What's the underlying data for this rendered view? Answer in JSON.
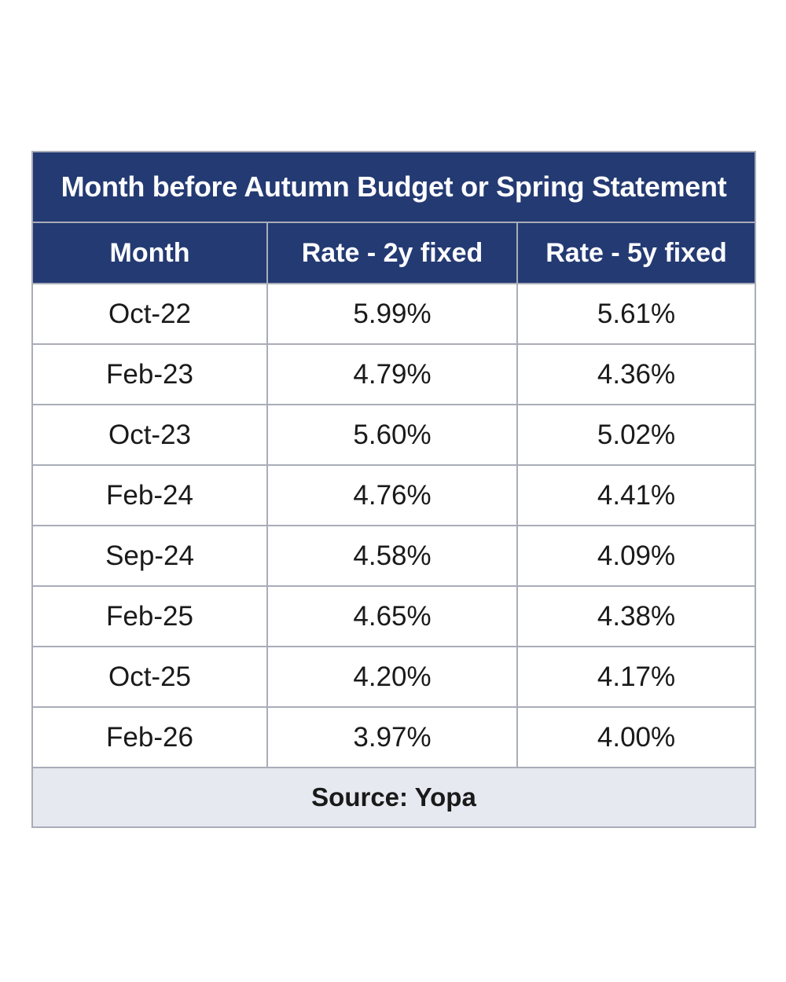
{
  "title": "Month before Autumn Budget or Spring Statement",
  "columns": [
    "Month",
    "Rate - 2y fixed",
    "Rate - 5y fixed"
  ],
  "rows": [
    [
      "Oct-22",
      "5.99%",
      "5.61%"
    ],
    [
      "Feb-23",
      "4.79%",
      "4.36%"
    ],
    [
      "Oct-23",
      "5.60%",
      "5.02%"
    ],
    [
      "Feb-24",
      "4.76%",
      "4.41%"
    ],
    [
      "Sep-24",
      "4.58%",
      "4.09%"
    ],
    [
      "Feb-25",
      "4.65%",
      "4.38%"
    ],
    [
      "Oct-25",
      "4.20%",
      "4.17%"
    ],
    [
      "Feb-26",
      "3.97%",
      "4.00%"
    ]
  ],
  "source": "Source: Yopa",
  "colors": {
    "header_bg": "#243a73",
    "header_text": "#ffffff",
    "footer_bg": "#e6e9f0",
    "border": "#a9adb8"
  }
}
